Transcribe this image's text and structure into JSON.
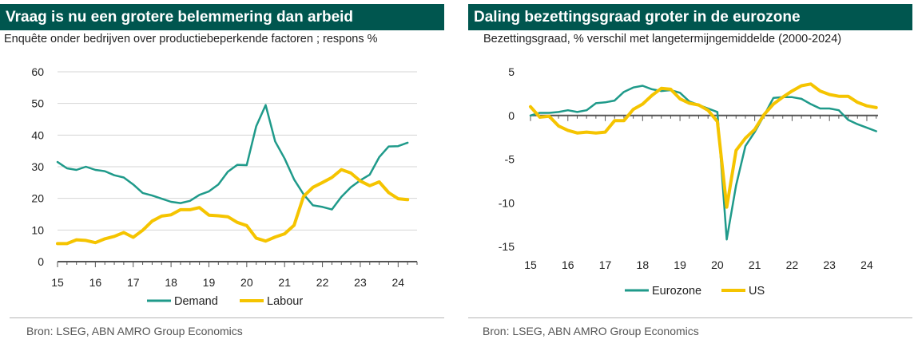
{
  "chart_data": [
    {
      "type": "line",
      "title": "Vraag is nu een grotere belemmering dan arbeid",
      "subtitle": "Enquête onder bedrijven over productiebeperkende factoren ; respons %",
      "xlabel": "",
      "ylabel": "",
      "xlim": [
        15,
        24.5
      ],
      "ylim": [
        0,
        60
      ],
      "yticks": [
        "0",
        "10",
        "20",
        "30",
        "40",
        "50",
        "60"
      ],
      "xticks": [
        "15",
        "16",
        "17",
        "18",
        "19",
        "20",
        "21",
        "22",
        "23",
        "24"
      ],
      "grid": "horizontal",
      "legend": "bottom-center",
      "series": [
        {
          "name": "Demand",
          "color": "#1f9a8a",
          "x": [
            15.0,
            15.25,
            15.5,
            15.75,
            16.0,
            16.25,
            16.5,
            16.75,
            17.0,
            17.25,
            17.5,
            17.75,
            18.0,
            18.25,
            18.5,
            18.75,
            19.0,
            19.25,
            19.5,
            19.75,
            20.0,
            20.25,
            20.5,
            20.75,
            21.0,
            21.25,
            21.5,
            21.75,
            22.0,
            22.25,
            22.5,
            22.75,
            23.0,
            23.25,
            23.5,
            23.75,
            24.0,
            24.25
          ],
          "values": [
            31.5,
            29.5,
            29,
            30,
            29,
            28.6,
            27.3,
            26.6,
            24.4,
            21.7,
            20.9,
            19.9,
            18.9,
            18.5,
            19.2,
            21.1,
            22.2,
            24.4,
            28.4,
            30.6,
            30.5,
            42.8,
            49.5,
            38.0,
            32.6,
            26.0,
            21.3,
            17.8,
            17.3,
            16.5,
            20.5,
            23.5,
            25.7,
            27.5,
            33.0,
            36.4,
            36.5,
            37.6
          ]
        },
        {
          "name": "Labour",
          "color": "#f5c400",
          "x": [
            15.0,
            15.25,
            15.5,
            15.75,
            16.0,
            16.25,
            16.5,
            16.75,
            17.0,
            17.25,
            17.5,
            17.75,
            18.0,
            18.25,
            18.5,
            18.75,
            19.0,
            19.25,
            19.5,
            19.75,
            20.0,
            20.25,
            20.5,
            20.75,
            21.0,
            21.25,
            21.5,
            21.75,
            22.0,
            22.25,
            22.5,
            22.75,
            23.0,
            23.25,
            23.5,
            23.75,
            24.0,
            24.25
          ],
          "values": [
            5.7,
            5.7,
            6.9,
            6.7,
            6.0,
            7.2,
            8.0,
            9.2,
            7.7,
            9.9,
            12.8,
            14.4,
            14.8,
            16.4,
            16.4,
            17.1,
            14.7,
            14.5,
            14.2,
            12.4,
            11.4,
            7.4,
            6.5,
            7.8,
            8.8,
            11.5,
            20.6,
            23.5,
            25.0,
            26.6,
            29.1,
            28.0,
            25.5,
            24.0,
            25.2,
            21.8,
            19.9,
            19.6
          ]
        }
      ],
      "source": "Bron: LSEG, ABN AMRO Group Economics"
    },
    {
      "type": "line",
      "title": "Daling bezettingsgraad groter in de eurozone",
      "subtitle": "Bezettingsgraad, % verschil met langetermijngemiddelde (2000-2024)",
      "xlabel": "",
      "ylabel": "",
      "xlim": [
        15,
        24.3
      ],
      "ylim": [
        -15,
        5
      ],
      "yticks": [
        "5",
        "0",
        "-5",
        "-10",
        "-15"
      ],
      "xticks": [
        "15",
        "16",
        "17",
        "18",
        "19",
        "20",
        "21",
        "22",
        "23",
        "24"
      ],
      "grid": "off",
      "legend": "bottom-center",
      "series": [
        {
          "name": "Eurozone",
          "color": "#1f9a8a",
          "x": [
            15.0,
            15.25,
            15.5,
            15.75,
            16.0,
            16.25,
            16.5,
            16.75,
            17.0,
            17.25,
            17.5,
            17.75,
            18.0,
            18.25,
            18.5,
            18.75,
            19.0,
            19.25,
            19.5,
            19.75,
            20.0,
            20.25,
            20.5,
            20.75,
            21.0,
            21.25,
            21.5,
            21.75,
            22.0,
            22.25,
            22.5,
            22.75,
            23.0,
            23.25,
            23.5,
            23.75,
            24.0,
            24.25
          ],
          "values": [
            0.0,
            0.3,
            0.3,
            0.4,
            0.6,
            0.4,
            0.6,
            1.4,
            1.5,
            1.7,
            2.7,
            3.2,
            3.4,
            3.0,
            2.8,
            2.9,
            2.6,
            1.6,
            1.2,
            0.8,
            0.4,
            -14.2,
            -8.0,
            -3.5,
            -1.9,
            0.0,
            2.0,
            2.1,
            2.1,
            1.9,
            1.3,
            0.8,
            0.8,
            0.6,
            -0.5,
            -1.0,
            -1.4,
            -1.8
          ]
        },
        {
          "name": "US",
          "color": "#f5c400",
          "x": [
            15.0,
            15.25,
            15.5,
            15.75,
            16.0,
            16.25,
            16.5,
            16.75,
            17.0,
            17.25,
            17.5,
            17.75,
            18.0,
            18.25,
            18.5,
            18.75,
            19.0,
            19.25,
            19.5,
            19.75,
            20.0,
            20.25,
            20.5,
            20.75,
            21.0,
            21.25,
            21.5,
            21.75,
            22.0,
            22.25,
            22.5,
            22.75,
            23.0,
            23.25,
            23.5,
            23.75,
            24.0,
            24.25
          ],
          "values": [
            1.0,
            -0.2,
            -0.1,
            -1.2,
            -1.7,
            -2.0,
            -1.9,
            -2.0,
            -1.9,
            -0.6,
            -0.6,
            0.7,
            1.3,
            2.3,
            3.1,
            3.0,
            1.9,
            1.4,
            1.2,
            0.6,
            -0.7,
            -10.5,
            -4.0,
            -2.6,
            -1.6,
            0.1,
            1.3,
            2.1,
            2.8,
            3.4,
            3.6,
            2.8,
            2.4,
            2.2,
            2.2,
            1.5,
            1.1,
            0.9
          ]
        }
      ],
      "source": "Bron: LSEG, ABN AMRO Group Economics"
    }
  ]
}
